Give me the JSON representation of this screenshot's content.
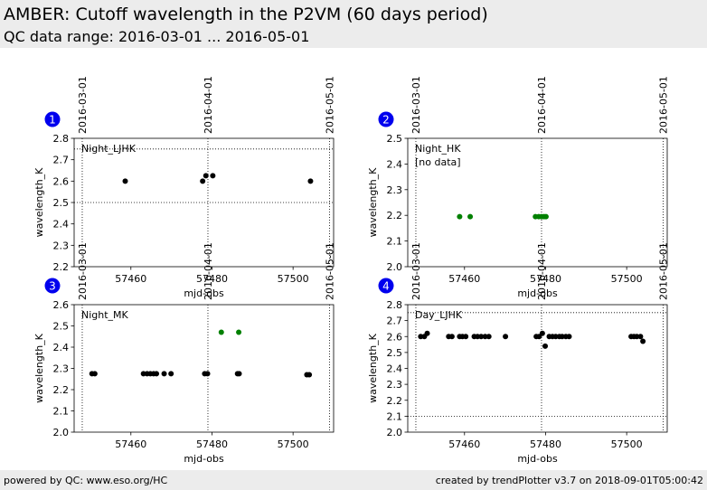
{
  "header": {
    "title": "AMBER: Cutoff wavelength in the P2VM (60 days period)",
    "subtitle": "QC data range: 2016-03-01 ... 2016-05-01"
  },
  "footer": {
    "left": "powered by QC: www.eso.org/HC",
    "right": "created by trendPlotter v3.7 on 2018-09-01T05:00:42"
  },
  "colors": {
    "black": "#000000",
    "green": "#008000",
    "badge": "#0000ee"
  },
  "chart_data": [
    {
      "type": "scatter",
      "badge": "1",
      "label": "Night_LJHK",
      "note": "",
      "xlabel": "mjd-obs",
      "ylabel": "wavelength_K",
      "xlim": [
        57446,
        57510
      ],
      "ylim": [
        2.2,
        2.8
      ],
      "xticks": [
        57460,
        57480,
        57500
      ],
      "yticks": [
        2.2,
        2.3,
        2.4,
        2.5,
        2.6,
        2.7,
        2.8
      ],
      "yticklabels": [
        "2.2",
        "2.3",
        "2.4",
        "2.5",
        "2.6",
        "2.7",
        "2.8"
      ],
      "date_lines": [
        57448,
        57479,
        57509
      ],
      "date_labels": [
        "2016-03-01",
        "2016-04-01",
        "2016-05-01"
      ],
      "hlines": [
        2.5,
        2.75
      ],
      "series": [
        {
          "color": "black",
          "x": [
            57458.6,
            57477.7,
            57478.5,
            57480.2,
            57504.3
          ],
          "y": [
            2.6,
            2.6,
            2.625,
            2.625,
            2.6
          ]
        }
      ]
    },
    {
      "type": "scatter",
      "badge": "2",
      "label": "Night_HK",
      "note": "[no data]",
      "xlabel": "mjd-obs",
      "ylabel": "wavelength_K",
      "xlim": [
        57446,
        57510
      ],
      "ylim": [
        2.0,
        2.5
      ],
      "xticks": [
        57460,
        57480,
        57500
      ],
      "yticks": [
        2.0,
        2.1,
        2.2,
        2.3,
        2.4,
        2.5
      ],
      "yticklabels": [
        "2.0",
        "2.1",
        "2.2",
        "2.3",
        "2.4",
        "2.5"
      ],
      "date_lines": [
        57448,
        57479,
        57509
      ],
      "date_labels": [
        "2016-03-01",
        "2016-04-01",
        "2016-05-01"
      ],
      "hlines": [],
      "series": [
        {
          "color": "green",
          "x": [
            57458.8,
            57461.4,
            57477.5,
            57478.3,
            57479.0,
            57479.6,
            57480.1
          ],
          "y": [
            2.195,
            2.195,
            2.195,
            2.195,
            2.195,
            2.195,
            2.195
          ]
        }
      ]
    },
    {
      "type": "scatter",
      "badge": "3",
      "label": "Night_MK",
      "note": "",
      "xlabel": "mjd-obs",
      "ylabel": "wavelength_K",
      "xlim": [
        57446,
        57510
      ],
      "ylim": [
        2.0,
        2.6
      ],
      "xticks": [
        57460,
        57480,
        57500
      ],
      "yticks": [
        2.0,
        2.1,
        2.2,
        2.3,
        2.4,
        2.5,
        2.6
      ],
      "yticklabels": [
        "2.0",
        "2.1",
        "2.2",
        "2.3",
        "2.4",
        "2.5",
        "2.6"
      ],
      "date_lines": [
        57448,
        57479,
        57509
      ],
      "date_labels": [
        "2016-03-01",
        "2016-04-01",
        "2016-05-01"
      ],
      "hlines": [],
      "series": [
        {
          "color": "black",
          "x": [
            57450.4,
            57451.1,
            57463.1,
            57464.0,
            57464.8,
            57465.6,
            57466.3,
            57468.2,
            57469.9,
            57478.2,
            57478.9,
            57486.3,
            57486.7,
            57503.4,
            57504.0
          ],
          "y": [
            2.275,
            2.275,
            2.275,
            2.275,
            2.275,
            2.275,
            2.275,
            2.275,
            2.275,
            2.275,
            2.275,
            2.275,
            2.275,
            2.27,
            2.27
          ]
        },
        {
          "color": "green",
          "x": [
            57482.3,
            57486.6
          ],
          "y": [
            2.47,
            2.47
          ]
        }
      ]
    },
    {
      "type": "scatter",
      "badge": "4",
      "label": "Day_LJHK",
      "note": "",
      "xlabel": "mjd-obs",
      "ylabel": "wavelength_K",
      "xlim": [
        57446,
        57510
      ],
      "ylim": [
        2.0,
        2.8
      ],
      "xticks": [
        57460,
        57480,
        57500
      ],
      "yticks": [
        2.0,
        2.1,
        2.2,
        2.3,
        2.4,
        2.5,
        2.6,
        2.7,
        2.8
      ],
      "yticklabels": [
        "2.0",
        "2.1",
        "2.2",
        "2.3",
        "2.4",
        "2.5",
        "2.6",
        "2.7",
        "2.8"
      ],
      "date_lines": [
        57448,
        57479,
        57509
      ],
      "date_labels": [
        "2016-03-01",
        "2016-04-01",
        "2016-05-01"
      ],
      "hlines": [
        2.1,
        2.75
      ],
      "series": [
        {
          "color": "black",
          "x": [
            57449.2,
            57450.1,
            57450.8,
            57456.1,
            57456.9,
            57458.8,
            57459.5,
            57460.3,
            57462.4,
            57463.2,
            57464.1,
            57465.1,
            57466.0,
            57470.1,
            57477.7,
            57478.4,
            57479.2,
            57479.9,
            57480.9,
            57481.7,
            57482.5,
            57483.4,
            57484.1,
            57485.0,
            57485.8,
            57501.1,
            57501.8,
            57502.5,
            57503.4,
            57504.0
          ],
          "y": [
            2.6,
            2.6,
            2.62,
            2.6,
            2.6,
            2.6,
            2.6,
            2.6,
            2.6,
            2.6,
            2.6,
            2.6,
            2.6,
            2.6,
            2.6,
            2.6,
            2.62,
            2.54,
            2.6,
            2.6,
            2.6,
            2.6,
            2.6,
            2.6,
            2.6,
            2.6,
            2.6,
            2.6,
            2.6,
            2.57
          ]
        }
      ]
    }
  ]
}
